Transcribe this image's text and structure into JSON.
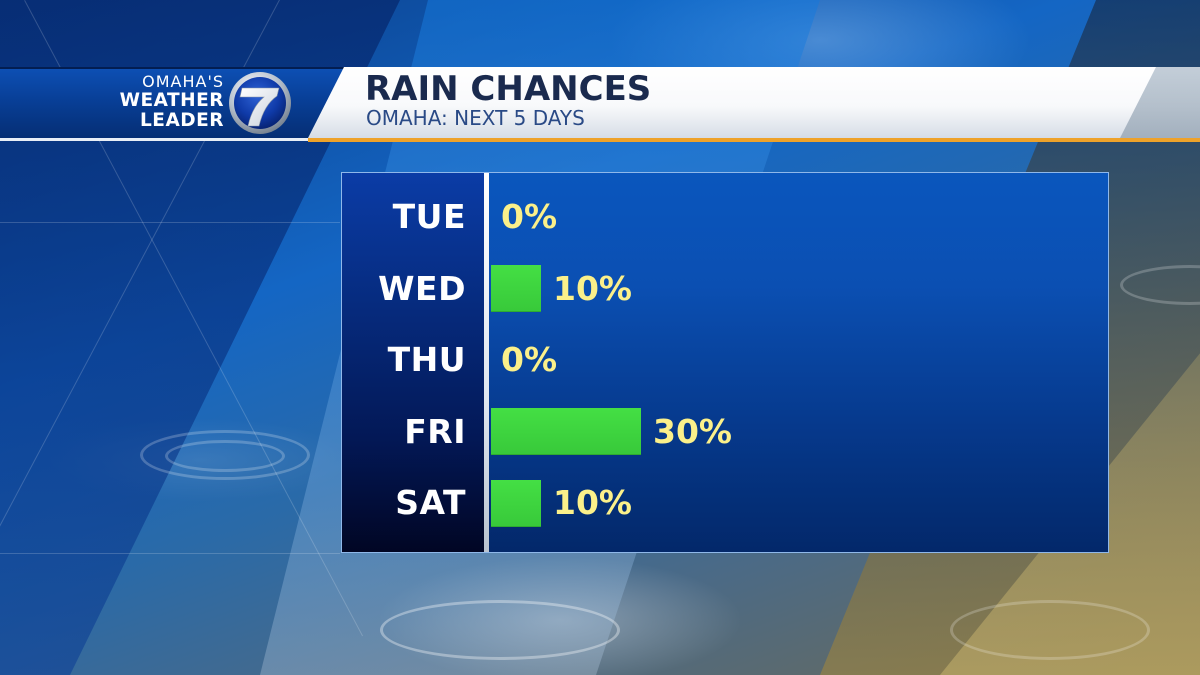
{
  "branding": {
    "line1": "OMAHA'S",
    "line2": "WEATHER",
    "line3": "LEADER",
    "channel_number": "7"
  },
  "header": {
    "title": "RAIN CHANCES",
    "subtitle": "OMAHA: NEXT 5 DAYS"
  },
  "colors": {
    "bar": "#3ed43f",
    "value_text": "#fbf08a",
    "label_text": "#ffffff",
    "accent_orange": "#eea22a",
    "title_text": "#1a2a4e",
    "subtitle_text": "#2a4a86"
  },
  "chart_data": {
    "type": "bar",
    "orientation": "horizontal",
    "title": "RAIN CHANCES",
    "subtitle": "OMAHA: NEXT 5 DAYS",
    "categories": [
      "TUE",
      "WED",
      "THU",
      "FRI",
      "SAT"
    ],
    "values": [
      0,
      10,
      0,
      30,
      10
    ],
    "value_labels": [
      "0%",
      "10%",
      "0%",
      "30%",
      "10%"
    ],
    "xlabel": "",
    "ylabel": "",
    "unit": "%",
    "xlim": [
      0,
      100
    ],
    "grid": false,
    "legend": null
  }
}
